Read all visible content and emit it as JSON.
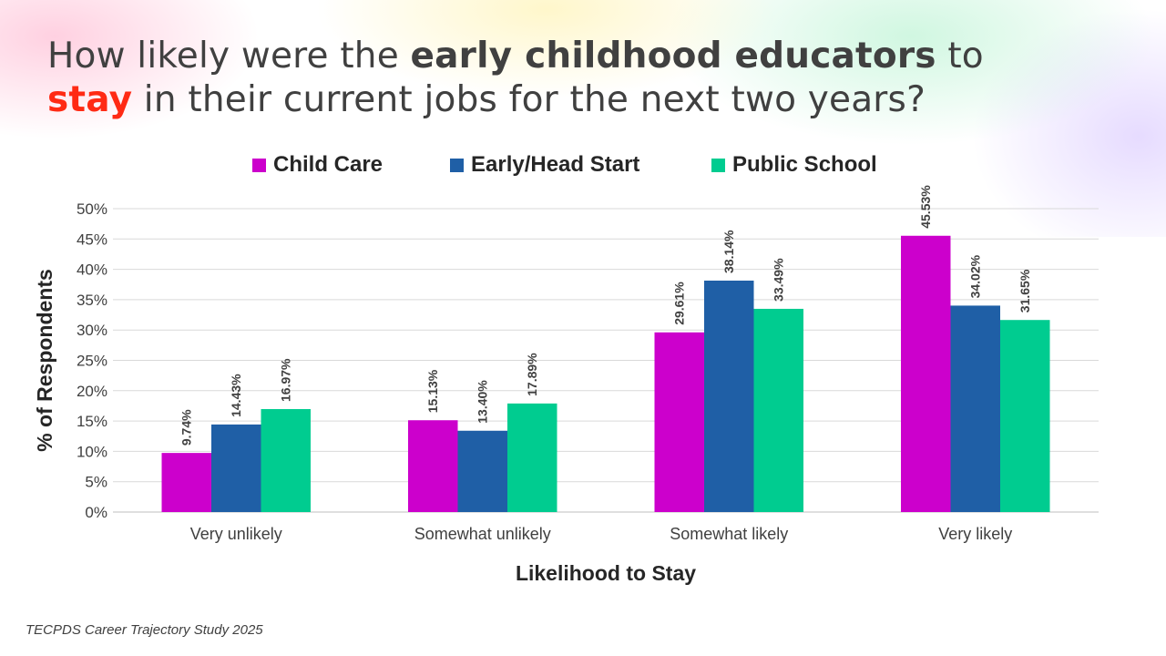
{
  "slide": {
    "title_part1": "How likely were the ",
    "title_bold": "early childhood educators",
    "title_part2": " to",
    "title_red": "stay",
    "title_part3": " in their current jobs for the next two years?",
    "source": "TECPDS Career Trajectory Study 2025"
  },
  "chart_data": {
    "type": "bar",
    "categories": [
      "Very unlikely",
      "Somewhat unlikely",
      "Somewhat likely",
      "Very likely"
    ],
    "series": [
      {
        "name": "Child Care",
        "color": "#cc00cc",
        "values": [
          9.74,
          15.13,
          29.61,
          45.53
        ],
        "labels": [
          "9.74%",
          "15.13%",
          "29.61%",
          "45.53%"
        ]
      },
      {
        "name": "Early/Head Start",
        "color": "#1f5fa6",
        "values": [
          14.43,
          13.4,
          38.14,
          34.02
        ],
        "labels": [
          "14.43%",
          "13.40%",
          "38.14%",
          "34.02%"
        ]
      },
      {
        "name": "Public School",
        "color": "#00cc90",
        "values": [
          16.97,
          17.89,
          33.49,
          31.65
        ],
        "labels": [
          "16.97%",
          "17.89%",
          "33.49%",
          "31.65%"
        ]
      }
    ],
    "xlabel": "Likelihood to Stay",
    "ylabel": "% of Respondents",
    "ylim": [
      0,
      50
    ],
    "yticks": [
      "0%",
      "5%",
      "10%",
      "15%",
      "20%",
      "25%",
      "30%",
      "35%",
      "40%",
      "45%",
      "50%"
    ],
    "grid": true,
    "legend_position": "top"
  }
}
